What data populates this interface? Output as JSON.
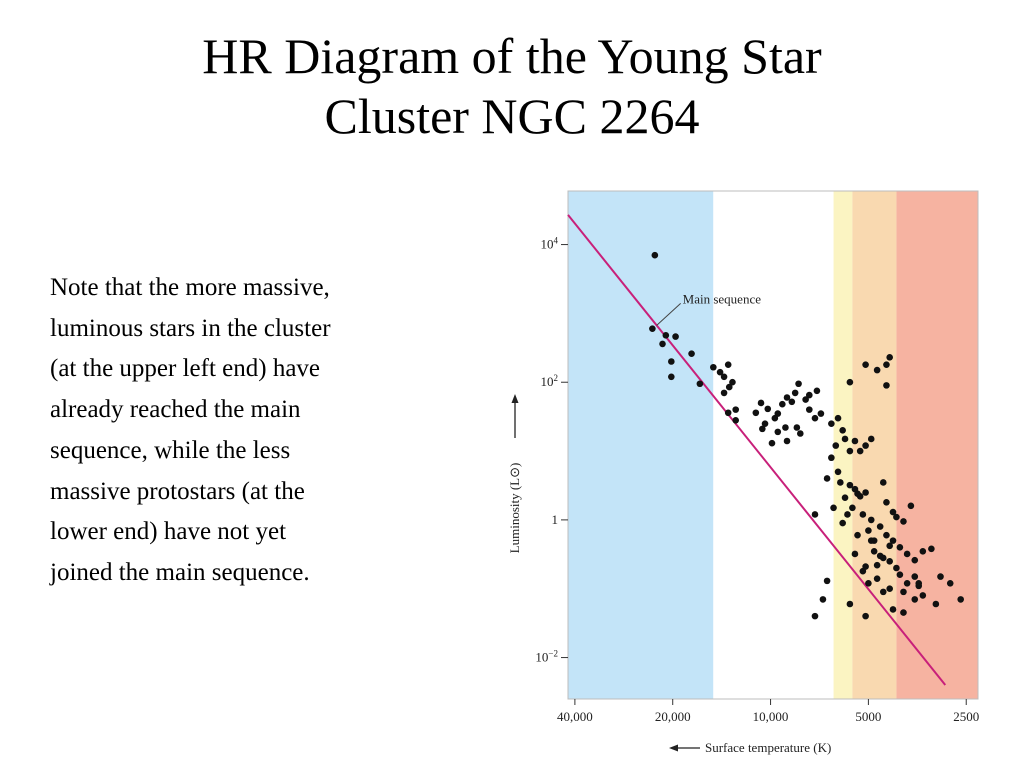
{
  "slide": {
    "title_lines": [
      "HR Diagram of the Young Star",
      "Cluster NGC 2264"
    ],
    "note_lines": [
      "Note that the more massive,",
      "luminous stars in the cluster",
      "(at the upper left end) have",
      "already reached the main",
      "sequence, while the less",
      "massive protostars (at the",
      "lower end) have not yet",
      "joined the main sequence."
    ]
  },
  "chart_data": {
    "type": "scatter",
    "title": "",
    "xlabel": "Surface temperature (K)",
    "ylabel": "Luminosity (L⊙)",
    "x_scale": "log",
    "x_reversed": true,
    "y_scale": "log",
    "xlim": [
      42000,
      2300
    ],
    "ylim": [
      0.0025,
      60000
    ],
    "x_ticks": [
      {
        "value": 40000,
        "label": "40,000"
      },
      {
        "value": 20000,
        "label": "20,000"
      },
      {
        "value": 10000,
        "label": "10,000"
      },
      {
        "value": 5000,
        "label": "5000"
      },
      {
        "value": 2500,
        "label": "2500"
      }
    ],
    "y_ticks": [
      {
        "value": 10000,
        "base": "10",
        "exp": "4"
      },
      {
        "value": 100,
        "base": "10",
        "exp": "2"
      },
      {
        "value": 1,
        "base": "1",
        "exp": ""
      },
      {
        "value": 0.01,
        "base": "10",
        "exp": "−2"
      }
    ],
    "grid": false,
    "color_bands": [
      {
        "from": 42000,
        "to": 15000,
        "color": "#c3e4f8"
      },
      {
        "from": 15000,
        "to": 6400,
        "color": "#ffffff"
      },
      {
        "from": 6400,
        "to": 5600,
        "color": "#fbf4c2"
      },
      {
        "from": 5600,
        "to": 4100,
        "color": "#f9d9b0"
      },
      {
        "from": 4100,
        "to": 2300,
        "color": "#f6b3a1"
      }
    ],
    "main_sequence": {
      "label": "Main sequence",
      "color": "#c8207a",
      "points": [
        [
          42000,
          27000
        ],
        [
          2900,
          0.004
        ]
      ]
    },
    "series": [
      {
        "color": "#111111",
        "points": [
          [
            22700,
            7000
          ],
          [
            23100,
            600
          ],
          [
            21000,
            480
          ],
          [
            21500,
            360
          ],
          [
            19600,
            460
          ],
          [
            20200,
            200
          ],
          [
            20200,
            120
          ],
          [
            17500,
            260
          ],
          [
            16500,
            95
          ],
          [
            15000,
            165
          ],
          [
            14300,
            140
          ],
          [
            13900,
            120
          ],
          [
            13500,
            180
          ],
          [
            13400,
            85
          ],
          [
            13900,
            70
          ],
          [
            13100,
            100
          ],
          [
            13500,
            36
          ],
          [
            12800,
            40
          ],
          [
            12800,
            28
          ],
          [
            11100,
            36
          ],
          [
            10700,
            50
          ],
          [
            10200,
            41
          ],
          [
            10400,
            25
          ],
          [
            9500,
            35
          ],
          [
            9200,
            48
          ],
          [
            9000,
            22
          ],
          [
            8900,
            60
          ],
          [
            8600,
            52
          ],
          [
            8400,
            70
          ],
          [
            8200,
            95
          ],
          [
            7800,
            56
          ],
          [
            7600,
            40
          ],
          [
            7300,
            30
          ],
          [
            8100,
            18
          ],
          [
            9700,
            30
          ],
          [
            10600,
            21
          ],
          [
            9900,
            13
          ],
          [
            9500,
            19
          ],
          [
            8900,
            14
          ],
          [
            8300,
            22
          ],
          [
            7600,
            65
          ],
          [
            7000,
            35
          ],
          [
            7200,
            75
          ],
          [
            6500,
            25
          ],
          [
            6200,
            30
          ],
          [
            6000,
            20
          ],
          [
            5900,
            15
          ],
          [
            6300,
            12
          ],
          [
            6500,
            8
          ],
          [
            5700,
            10
          ],
          [
            5500,
            14
          ],
          [
            5300,
            10
          ],
          [
            5100,
            12
          ],
          [
            4900,
            15
          ],
          [
            6700,
            4
          ],
          [
            6200,
            5
          ],
          [
            6100,
            3.5
          ],
          [
            5700,
            3.2
          ],
          [
            5500,
            2.8
          ],
          [
            5300,
            2.2
          ],
          [
            5100,
            2.5
          ],
          [
            5600,
            1.5
          ],
          [
            5200,
            1.2
          ],
          [
            4900,
            1
          ],
          [
            5800,
            1.2
          ],
          [
            5400,
            0.6
          ],
          [
            5000,
            0.7
          ],
          [
            4800,
            0.5
          ],
          [
            4600,
            0.8
          ],
          [
            4400,
            0.6
          ],
          [
            4200,
            0.5
          ],
          [
            4800,
            0.35
          ],
          [
            4600,
            0.3
          ],
          [
            4300,
            0.25
          ],
          [
            4100,
            0.2
          ],
          [
            4000,
            0.4
          ],
          [
            3800,
            0.32
          ],
          [
            4500,
            0.28
          ],
          [
            4700,
            0.22
          ],
          [
            4000,
            0.16
          ],
          [
            3800,
            0.12
          ],
          [
            3600,
            0.15
          ],
          [
            3400,
            0.35
          ],
          [
            3600,
            0.26
          ],
          [
            4200,
            1.3
          ],
          [
            4400,
            1.8
          ],
          [
            4500,
            3.5
          ],
          [
            4100,
            1.1
          ],
          [
            3900,
            0.95
          ],
          [
            3700,
            1.6
          ],
          [
            5900,
            2.1
          ],
          [
            5500,
            0.32
          ],
          [
            5200,
            0.18
          ],
          [
            5000,
            0.12
          ],
          [
            4700,
            0.14
          ],
          [
            4500,
            0.09
          ],
          [
            4300,
            0.1
          ],
          [
            3900,
            0.09
          ],
          [
            3600,
            0.07
          ],
          [
            3400,
            0.08
          ],
          [
            3500,
            0.11
          ],
          [
            3100,
            0.06
          ],
          [
            3000,
            0.15
          ],
          [
            3200,
            0.38
          ],
          [
            2800,
            0.12
          ],
          [
            2600,
            0.07
          ],
          [
            6700,
            0.13
          ],
          [
            6900,
            0.07
          ],
          [
            5700,
            0.06
          ],
          [
            5100,
            0.04
          ],
          [
            4200,
            0.05
          ],
          [
            3900,
            0.045
          ],
          [
            7300,
            0.04
          ],
          [
            3500,
            0.12
          ],
          [
            4900,
            0.5
          ],
          [
            4300,
            0.42
          ],
          [
            6000,
            0.9
          ],
          [
            6400,
            1.5
          ],
          [
            7300,
            1.2
          ],
          [
            5400,
            2.4
          ],
          [
            5100,
            0.21
          ],
          [
            5700,
            100
          ],
          [
            5100,
            180
          ],
          [
            4700,
            150
          ],
          [
            4400,
            180
          ],
          [
            4300,
            230
          ],
          [
            4400,
            90
          ]
        ]
      }
    ]
  }
}
